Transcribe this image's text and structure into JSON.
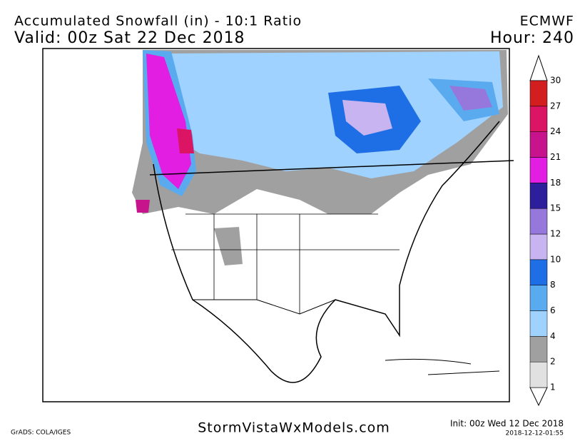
{
  "header": {
    "title": "Accumulated Snowfall (in) - 10:1 Ratio",
    "valid": "Valid: 00z Sat 22 Dec 2018",
    "model": "ECMWF",
    "hour": "Hour: 240"
  },
  "colorbar": {
    "levels": [
      1,
      2,
      4,
      6,
      8,
      10,
      12,
      15,
      18,
      21,
      24,
      27,
      30
    ],
    "colors": [
      "#e1e1e1",
      "#a0a0a0",
      "#a0d2ff",
      "#5aaaf0",
      "#1e6ee6",
      "#c8b4f0",
      "#9678dc",
      "#2d1e9b",
      "#e11ee1",
      "#c8148c",
      "#dc1464",
      "#d21e1e"
    ]
  },
  "footer": {
    "credit": "GrADS: COLA/IGES",
    "site": "StormVistaWxModels.com",
    "init": "Init: 00z Wed 12 Dec 2018",
    "stamp": "2018-12-12-01:55"
  }
}
